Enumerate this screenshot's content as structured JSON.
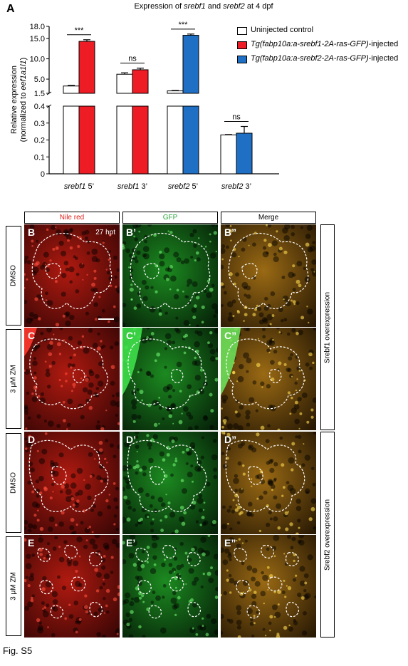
{
  "figure": {
    "panel_label": "A",
    "caption": "Fig. S5"
  },
  "chart_data": {
    "type": "bar",
    "title": "Expression of srebf1 and srebf2 at 4 dpf",
    "title_parts": [
      {
        "text": "Expression of ",
        "italic": false
      },
      {
        "text": "srebf1",
        "italic": true
      },
      {
        "text": " and ",
        "italic": false
      },
      {
        "text": "srebf2",
        "italic": true
      },
      {
        "text": " at 4 dpf",
        "italic": false
      }
    ],
    "ylabel_line1": "Relative expression",
    "ylabel_line2_parts": [
      {
        "text": "(normalized to ",
        "italic": false
      },
      {
        "text": "eef1a1l1",
        "italic": true
      },
      {
        "text": ")",
        "italic": false
      }
    ],
    "ylim_upper": [
      1.5,
      18.0
    ],
    "ylim_lower": [
      0,
      0.4
    ],
    "yticks_upper": [
      "18.0",
      "15.0",
      "10.0",
      "5.0",
      "1.5"
    ],
    "yticks_lower": [
      "0.4",
      "0.3",
      "0.2",
      "0.1",
      "0"
    ],
    "categories": [
      {
        "gene": "srebf1",
        "end": "5’"
      },
      {
        "gene": "srebf1",
        "end": "3’"
      },
      {
        "gene": "srebf2",
        "end": "5’"
      },
      {
        "gene": "srebf2",
        "end": "3’"
      }
    ],
    "series": [
      {
        "name": "Uninjected control",
        "color": "#ffffff",
        "values": [
          3.3,
          6.2,
          2.1,
          0.23
        ],
        "errors": [
          0.15,
          0.35,
          0.1,
          0.002
        ]
      },
      {
        "name": "Tg(fabp10a:a-srebf1-2A-ras-GFP)-injected",
        "name_parts": [
          {
            "text": "Tg(fabp10a:a-srebf1-2A-ras-GFP)",
            "italic": true
          },
          {
            "text": "-injected",
            "italic": false
          }
        ],
        "color": "#ee1c24",
        "values": [
          14.3,
          7.3,
          null,
          null
        ],
        "errors": [
          0.4,
          0.4,
          null,
          null
        ]
      },
      {
        "name": "Tg(fabp10a:a-srebf2-2A-ras-GFP)-injected",
        "name_parts": [
          {
            "text": "Tg(fabp10a:a-srebf2-2A-ras-GFP)",
            "italic": true
          },
          {
            "text": "-injected",
            "italic": false
          }
        ],
        "color": "#1f6fc4",
        "values": [
          null,
          null,
          15.8,
          0.24
        ],
        "errors": [
          null,
          null,
          0.3,
          0.04
        ]
      }
    ],
    "significance": [
      "***",
      "ns",
      "***",
      "ns"
    ],
    "legend_position": "top-right"
  },
  "micrographs": {
    "column_headers": [
      "Nile red",
      "GFP",
      "Merge"
    ],
    "column_colors": [
      "#e0201b",
      "#2aa63a",
      "#000000"
    ],
    "rows": [
      {
        "label": "DMSO",
        "letters": [
          "B",
          "B’",
          "B”"
        ],
        "annotation": "27 hpt"
      },
      {
        "label": "3 μM ZM",
        "letters": [
          "C",
          "C’",
          "C”"
        ]
      },
      {
        "label": "DMSO",
        "letters": [
          "D",
          "D’",
          "D”"
        ]
      },
      {
        "label": "3 μM ZM",
        "letters": [
          "E",
          "E’",
          "E”"
        ]
      }
    ],
    "group_labels": [
      "Srebf1 overexpression",
      "Srebf2 overexpression"
    ]
  }
}
